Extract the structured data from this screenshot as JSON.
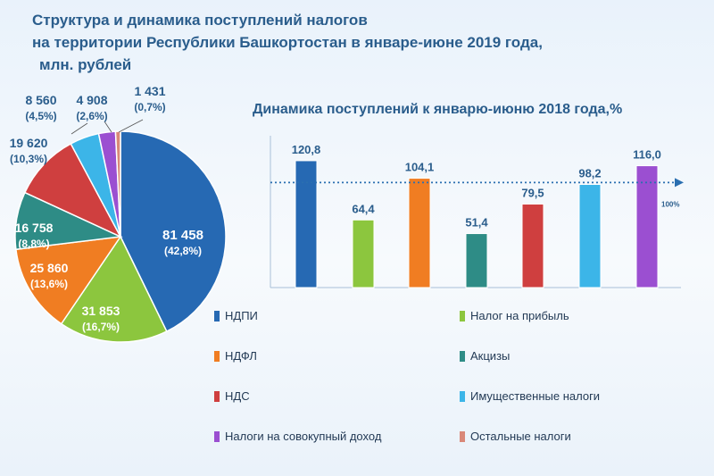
{
  "title": {
    "line1": "Структура и динамика поступлений налогов",
    "line2": "на территории Республики Башкортостан в январе-июне 2019 года,",
    "line3": "млн. рублей"
  },
  "chart_data": [
    {
      "type": "pie",
      "title": "Структура и динамика поступлений налогов на территории Республики Башкортостан в январе-июне 2019 года, млн. рублей",
      "slices": [
        {
          "name": "НДПИ",
          "value": 81458,
          "value_label": "81 458",
          "percent_label": "(42,8%)",
          "color": "#2669b3"
        },
        {
          "name": "Налог на прибыль",
          "value": 31853,
          "value_label": "31 853",
          "percent_label": "(16,7%)",
          "color": "#8cc63e"
        },
        {
          "name": "НДФЛ",
          "value": 25860,
          "value_label": "25 860",
          "percent_label": "(13,6%)",
          "color": "#f07d22"
        },
        {
          "name": "Акцизы",
          "value": 16758,
          "value_label": "16 758",
          "percent_label": "(8,8%)",
          "color": "#2e8c86"
        },
        {
          "name": "НДС",
          "value": 19620,
          "value_label": "19 620",
          "percent_label": "(10,3%)",
          "color": "#cf3f3f"
        },
        {
          "name": "Имущественные налоги",
          "value": 8560,
          "value_label": "8 560",
          "percent_label": "(4,5%)",
          "color": "#3cb5e8"
        },
        {
          "name": "Налоги на совокупный доход",
          "value": 4908,
          "value_label": "4 908",
          "percent_label": "(2,6%)",
          "color": "#9b4fd1"
        },
        {
          "name": "Остальные налоги",
          "value": 1431,
          "value_label": "1 431",
          "percent_label": "(0,7%)",
          "color": "#d98878"
        }
      ]
    },
    {
      "type": "bar",
      "title": "Динамика поступлений к январю-июню 2018 года,%",
      "categories": [
        "НДПИ",
        "Налог на прибыль",
        "НДФЛ",
        "Акцизы",
        "НДС",
        "Имущественные налоги",
        "Налоги на совокупный доход"
      ],
      "values": [
        120.8,
        64.4,
        104.1,
        51.4,
        79.5,
        98.2,
        116.0
      ],
      "value_labels": [
        "120,8",
        "64,4",
        "104,1",
        "51,4",
        "79,5",
        "98,2",
        "116,0"
      ],
      "colors": [
        "#2669b3",
        "#8cc63e",
        "#f07d22",
        "#2e8c86",
        "#cf3f3f",
        "#3cb5e8",
        "#9b4fd1"
      ],
      "reference_line": {
        "value": 100,
        "label": "100%"
      },
      "ylim": [
        0,
        125
      ]
    }
  ],
  "legend": [
    {
      "label": "НДПИ",
      "color": "#2669b3"
    },
    {
      "label": "Налог на прибыль",
      "color": "#8cc63e"
    },
    {
      "label": "НДФЛ",
      "color": "#f07d22"
    },
    {
      "label": "Акцизы",
      "color": "#2e8c86"
    },
    {
      "label": "НДС",
      "color": "#cf3f3f"
    },
    {
      "label": "Имущественные налоги",
      "color": "#3cb5e8"
    },
    {
      "label": "Налоги на совокупный доход",
      "color": "#9b4fd1"
    },
    {
      "label": "Остальные налоги",
      "color": "#d98878"
    }
  ]
}
